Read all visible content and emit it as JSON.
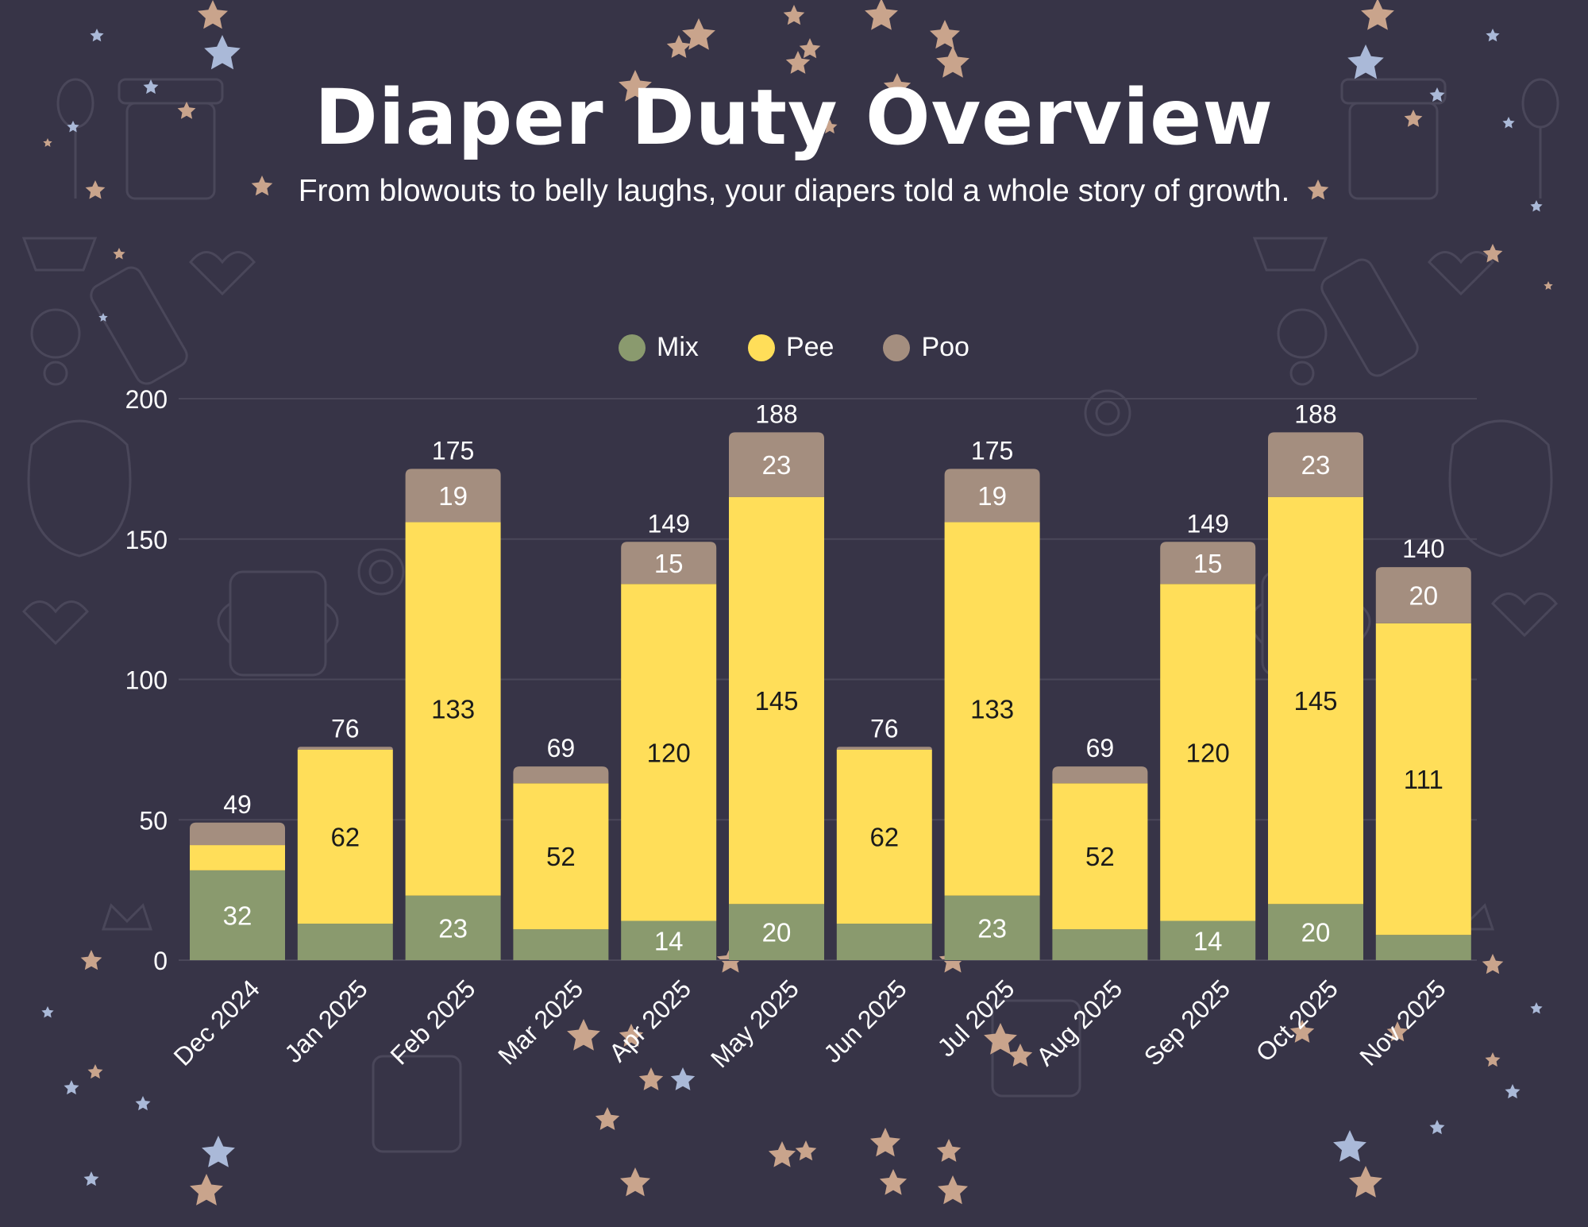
{
  "title": "Diaper Duty Overview",
  "subtitle": "From blowouts to belly laughs, your diapers told a whole story of growth.",
  "colors": {
    "background": "#373447",
    "mix": "#8a9a6e",
    "pee": "#ffde59",
    "poo": "#a48e7f",
    "star_tan": "#c9a48c",
    "star_blue": "#aab9d8",
    "doodle": "#4a475a"
  },
  "legend": [
    {
      "name": "Mix",
      "color": "#8a9a6e"
    },
    {
      "name": "Pee",
      "color": "#ffde59"
    },
    {
      "name": "Poo",
      "color": "#a48e7f"
    }
  ],
  "chart_data": {
    "type": "bar",
    "stacked": true,
    "title": "Diaper Duty Overview",
    "xlabel": "",
    "ylabel": "",
    "ylim": [
      0,
      200
    ],
    "yticks": [
      0,
      50,
      100,
      150,
      200
    ],
    "grid": true,
    "legend_position": "top-center",
    "categories": [
      "Dec 2024",
      "Jan 2025",
      "Feb 2025",
      "Mar 2025",
      "Apr 2025",
      "May 2025",
      "Jun 2025",
      "Jul 2025",
      "Aug 2025",
      "Sep 2025",
      "Oct 2025",
      "Nov 2025"
    ],
    "series": [
      {
        "name": "Mix",
        "values": [
          32,
          13,
          23,
          11,
          14,
          20,
          13,
          23,
          11,
          14,
          20,
          9
        ],
        "labels": [
          "32",
          "",
          "23",
          "",
          "14",
          "20",
          "",
          "23",
          "",
          "14",
          "20",
          ""
        ]
      },
      {
        "name": "Pee",
        "values": [
          9,
          62,
          133,
          52,
          120,
          145,
          62,
          133,
          52,
          120,
          145,
          111
        ],
        "labels": [
          "",
          "62",
          "133",
          "52",
          "120",
          "145",
          "62",
          "133",
          "52",
          "120",
          "145",
          "111"
        ]
      },
      {
        "name": "Poo",
        "values": [
          8,
          1,
          19,
          6,
          15,
          23,
          1,
          19,
          6,
          15,
          23,
          20
        ],
        "labels": [
          "",
          "",
          "19",
          "",
          "15",
          "23",
          "",
          "19",
          "",
          "15",
          "23",
          "20"
        ]
      }
    ],
    "totals": [
      49,
      76,
      175,
      69,
      149,
      188,
      76,
      175,
      69,
      149,
      188,
      140
    ]
  }
}
